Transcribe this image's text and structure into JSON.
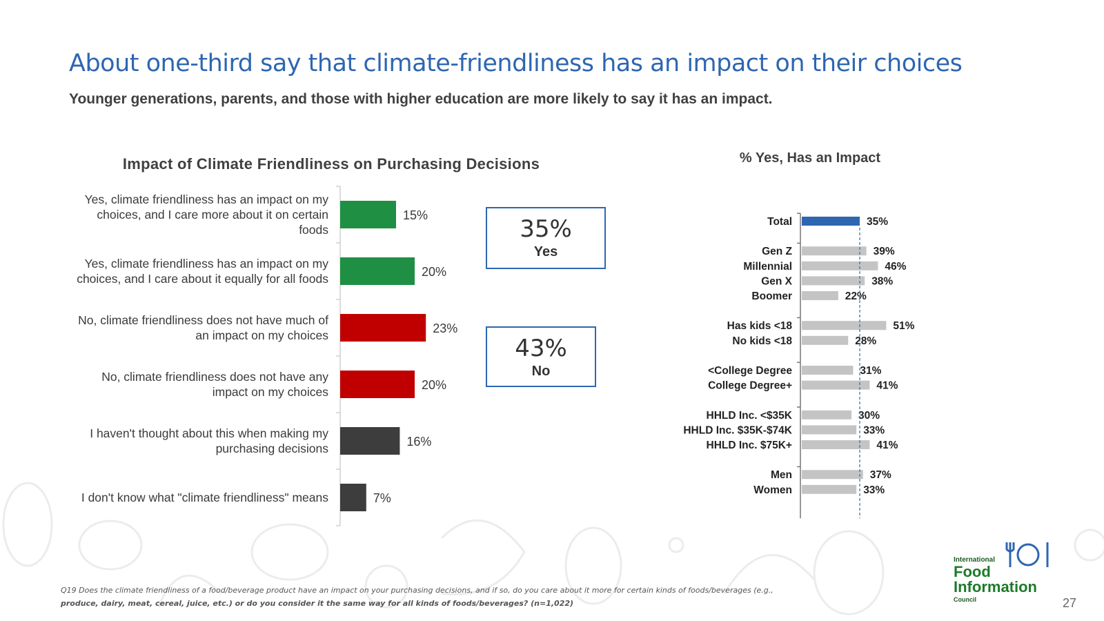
{
  "title": "About one-third say that climate-friendliness has an impact on their choices",
  "subtitle": "Younger generations, parents, and those with higher education are more likely to say it has an impact.",
  "callouts": {
    "yes": {
      "pct": "35%",
      "label": "Yes"
    },
    "no": {
      "pct": "43%",
      "label": "No"
    }
  },
  "footnote": {
    "line1": "Q19 Does the climate friendliness of a food/beverage product have an impact on your purchasing decisions, and if so, do you care about it more for certain kinds of foods/beverages (e.g.,",
    "line2": "produce, dairy, meat, cereal, juice, etc.) or do you consider it the same way for all kinds of foods/beverages? (n=1,022)"
  },
  "logo": {
    "small": "International",
    "big1": "Food",
    "big2": "Information",
    "council": "Council"
  },
  "page_number": "27",
  "colors": {
    "accent": "#2e66b1",
    "green": "#1f8f43",
    "red": "#c00000",
    "dark": "#3d3d3d",
    "gray": "#c4c4c4"
  },
  "chart_data": [
    {
      "type": "bar",
      "orientation": "horizontal",
      "title": "Impact of Climate Friendliness on Purchasing Decisions",
      "categories": [
        "Yes, climate friendliness has an impact on my choices, and I care more about it on certain foods",
        "Yes, climate friendliness has an impact on my choices, and I care about it equally for all foods",
        "No, climate friendliness does not have much of an impact on my choices",
        "No, climate friendliness does not have any impact on my choices",
        "I haven't thought about this when making my purchasing decisions",
        "I don't know what \"climate friendliness\" means"
      ],
      "category_lines": [
        [
          "Yes, climate friendliness has an impact on my",
          "choices, and I care more about it on certain",
          "foods"
        ],
        [
          "Yes, climate friendliness has an impact on my",
          "choices, and I care about it equally for all foods"
        ],
        [
          "No, climate friendliness does not have much of",
          "an impact on my choices"
        ],
        [
          "No, climate friendliness does not have any",
          "impact on my choices"
        ],
        [
          "I haven't thought about this when making my",
          "purchasing decisions"
        ],
        [
          "I don't know what \"climate friendliness\" means"
        ]
      ],
      "values": [
        15,
        20,
        23,
        20,
        16,
        7
      ],
      "value_labels": [
        "15%",
        "20%",
        "23%",
        "20%",
        "16%",
        "7%"
      ],
      "bar_colors": [
        "#1f8f43",
        "#1f8f43",
        "#c00000",
        "#c00000",
        "#3d3d3d",
        "#3d3d3d"
      ],
      "xlim": [
        0,
        100
      ],
      "unit": "%"
    },
    {
      "type": "bar",
      "orientation": "horizontal",
      "title": "% Yes, Has an Impact",
      "groups": [
        {
          "items": [
            {
              "label": "Total",
              "value": 35,
              "value_label": "35%",
              "highlight": true
            }
          ]
        },
        {
          "items": [
            {
              "label": "Gen Z",
              "value": 39,
              "value_label": "39%"
            },
            {
              "label": "Millennial",
              "value": 46,
              "value_label": "46%"
            },
            {
              "label": "Gen X",
              "value": 38,
              "value_label": "38%"
            },
            {
              "label": "Boomer",
              "value": 22,
              "value_label": "22%"
            }
          ]
        },
        {
          "items": [
            {
              "label": "Has kids <18",
              "value": 51,
              "value_label": "51%"
            },
            {
              "label": "No kids <18",
              "value": 28,
              "value_label": "28%"
            }
          ]
        },
        {
          "items": [
            {
              "label": "<College Degree",
              "value": 31,
              "value_label": "31%"
            },
            {
              "label": "College Degree+",
              "value": 41,
              "value_label": "41%"
            }
          ]
        },
        {
          "items": [
            {
              "label": "HHLD Inc. <$35K",
              "value": 30,
              "value_label": "30%"
            },
            {
              "label": "HHLD Inc. $35K-$74K",
              "value": 33,
              "value_label": "33%"
            },
            {
              "label": "HHLD Inc. $75K+",
              "value": 41,
              "value_label": "41%"
            }
          ]
        },
        {
          "items": [
            {
              "label": "Men",
              "value": 37,
              "value_label": "37%"
            },
            {
              "label": "Women",
              "value": 33,
              "value_label": "33%"
            }
          ]
        }
      ],
      "reference_line": 35,
      "xlim": [
        0,
        100
      ],
      "unit": "%"
    }
  ]
}
